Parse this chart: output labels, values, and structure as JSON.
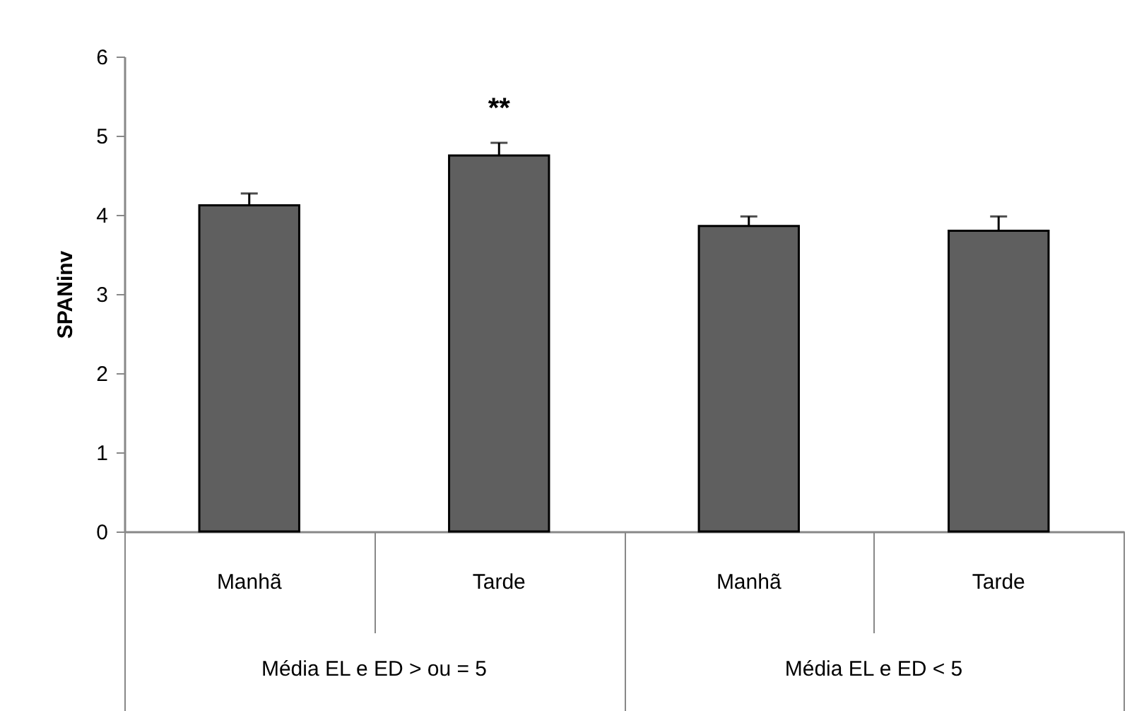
{
  "chart_data": {
    "type": "bar",
    "ylabel": "SPANinv",
    "categories": [
      "Manhã",
      "Tarde",
      "Manhã",
      "Tarde"
    ],
    "values": [
      4.12,
      4.75,
      3.86,
      3.8
    ],
    "errors": [
      [
        4.12,
        4.27
      ],
      [
        4.75,
        4.91
      ],
      [
        3.86,
        3.98
      ],
      [
        3.8,
        3.98
      ]
    ],
    "color": "#5f5f5f",
    "ylim": [
      0,
      6
    ],
    "yticks": [
      0,
      1,
      2,
      3,
      4,
      5,
      6
    ],
    "grid": false,
    "annotations": [
      "**",
      "Média EL  e ED > ou = 5",
      "Média EL  e ED < 5"
    ]
  }
}
